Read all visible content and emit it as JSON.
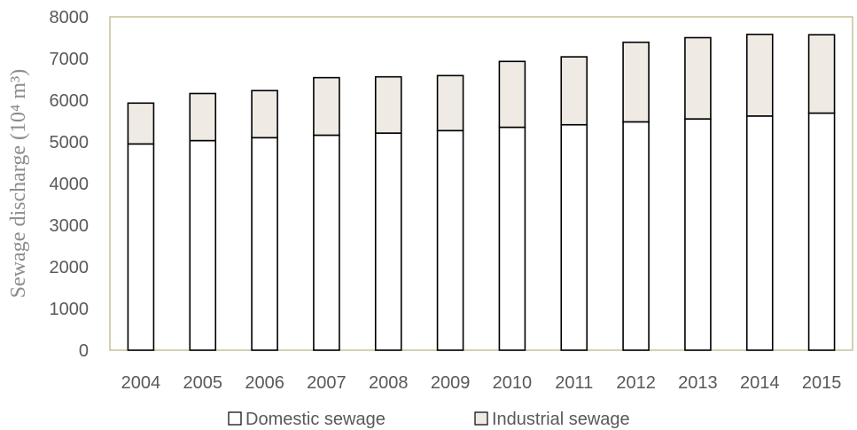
{
  "chart_data": {
    "type": "bar",
    "stacked": true,
    "categories": [
      "2004",
      "2005",
      "2006",
      "2007",
      "2008",
      "2009",
      "2010",
      "2011",
      "2012",
      "2013",
      "2014",
      "2015"
    ],
    "series": [
      {
        "name": "Domestic sewage",
        "color": "#ffffff",
        "values": [
          4950,
          5030,
          5100,
          5160,
          5210,
          5270,
          5350,
          5410,
          5480,
          5550,
          5620,
          5690
        ]
      },
      {
        "name": "Industrial sewage",
        "color": "#efebe4",
        "values": [
          980,
          1130,
          1130,
          1380,
          1350,
          1320,
          1580,
          1630,
          1910,
          1950,
          1960,
          1880
        ]
      }
    ],
    "xlabel": "",
    "ylabel": "Sewage discharge (10⁴ m³)",
    "ylim": [
      0,
      8000
    ],
    "yticks": [
      "0",
      "1000",
      "2000",
      "3000",
      "4000",
      "5000",
      "6000",
      "7000",
      "8000"
    ],
    "grid": false,
    "legend": "bottom"
  }
}
